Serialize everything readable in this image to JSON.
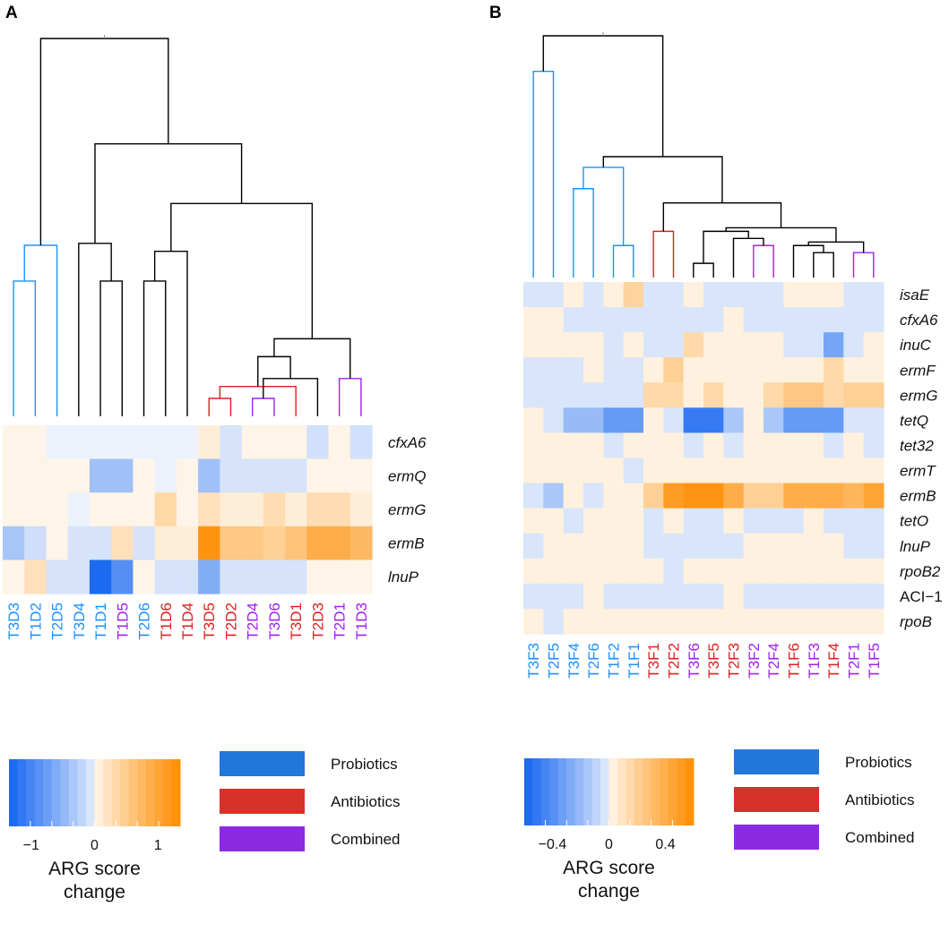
{
  "colors": {
    "Probiotics": "#1E90FF",
    "Antibiotics": "#DC2020",
    "Combined": "#A020F0",
    "neutral": "#000000",
    "negative_end": "#1565F0",
    "positive_end": "#FF8C00",
    "mid": "#FFFFFF"
  },
  "legend": {
    "items": [
      {
        "label": "Probiotics",
        "color": "#2277D9"
      },
      {
        "label": "Antibiotics",
        "color": "#D6322B"
      },
      {
        "label": "Combined",
        "color": "#8A2BE2"
      }
    ]
  },
  "chart_data": [
    {
      "type": "heatmap",
      "panel": "A",
      "title": "",
      "columns": [
        "T3D3",
        "T1D2",
        "T2D5",
        "T3D4",
        "T1D1",
        "T1D5",
        "T2D6",
        "T1D6",
        "T1D4",
        "T3D5",
        "T2D2",
        "T2D4",
        "T3D6",
        "T3D1",
        "T2D3",
        "T2D1",
        "T1D3"
      ],
      "column_groups": [
        "Probiotics",
        "Probiotics",
        "Probiotics",
        "Probiotics",
        "Probiotics",
        "Combined",
        "Probiotics",
        "Antibiotics",
        "Antibiotics",
        "Antibiotics",
        "Antibiotics",
        "Combined",
        "Combined",
        "Antibiotics",
        "Antibiotics",
        "Combined",
        "Combined"
      ],
      "rows": [
        "cfxA6",
        "ermQ",
        "ermG",
        "ermB",
        "lnuP"
      ],
      "italic_rows": [
        true,
        true,
        true,
        true,
        true
      ],
      "values": [
        [
          0.05,
          0.05,
          -0.05,
          -0.05,
          -0.05,
          -0.05,
          -0.05,
          -0.05,
          -0.05,
          0.1,
          -0.08,
          0.05,
          0.05,
          0.05,
          -0.1,
          0.05,
          -0.1
        ],
        [
          0.05,
          0.05,
          0.05,
          0.05,
          -0.4,
          -0.4,
          0.05,
          -0.05,
          0.05,
          -0.4,
          -0.08,
          -0.08,
          -0.08,
          -0.08,
          0.05,
          0.05,
          0.05
        ],
        [
          0.05,
          0.05,
          0.05,
          -0.05,
          0.05,
          0.05,
          0.05,
          0.35,
          0.05,
          0.25,
          0.1,
          0.1,
          0.3,
          0.1,
          0.3,
          0.3,
          0.1
        ],
        [
          -0.35,
          -0.12,
          0.05,
          -0.08,
          -0.08,
          0.25,
          -0.08,
          0.1,
          0.1,
          1.25,
          0.55,
          0.55,
          0.45,
          0.6,
          0.9,
          0.9,
          0.75
        ],
        [
          0.05,
          0.25,
          -0.08,
          -0.08,
          -1.3,
          -0.9,
          0.05,
          -0.08,
          -0.08,
          -0.6,
          -0.08,
          -0.08,
          -0.08,
          -0.08,
          0.05,
          0.05,
          0.05
        ]
      ],
      "colorbar": {
        "range": [
          -1.35,
          1.35
        ],
        "ticks": [
          -1,
          0,
          1
        ],
        "tick_labels": [
          "−1",
          "0",
          "1"
        ],
        "label_line1": "ARG score",
        "label_line2": "change"
      },
      "dendrogram": {
        "merges": [
          [
            0,
            1,
            0.68
          ],
          [
            4,
            5,
            0.68
          ],
          [
            6,
            7,
            0.68
          ],
          [
            9,
            10,
            0.09
          ],
          [
            11,
            12,
            0.09
          ],
          [
            13,
            -4,
            0.15
          ],
          [
            -5,
            14,
            0.19
          ],
          [
            15,
            16,
            0.19
          ],
          [
            -7,
            -6,
            0.3
          ],
          [
            -8,
            -9,
            0.39
          ],
          [
            -1,
            2,
            0.86
          ],
          [
            3,
            -2,
            0.87
          ],
          [
            -3,
            8,
            0.83
          ],
          [
            -13,
            -10,
            1.07
          ],
          [
            -12,
            -14,
            1.37
          ],
          [
            -11,
            -15,
            1.9
          ]
        ],
        "height_max": 1.9
      }
    },
    {
      "type": "heatmap",
      "panel": "B",
      "title": "",
      "columns": [
        "T3F3",
        "T2F5",
        "T3F4",
        "T2F6",
        "T1F2",
        "T1F1",
        "T3F1",
        "T2F2",
        "T3F6",
        "T3F5",
        "T2F3",
        "T3F2",
        "T2F4",
        "T1F6",
        "T1F3",
        "T1F4",
        "T2F1",
        "T1F5"
      ],
      "column_groups": [
        "Probiotics",
        "Probiotics",
        "Probiotics",
        "Probiotics",
        "Probiotics",
        "Probiotics",
        "Antibiotics",
        "Antibiotics",
        "Combined",
        "Antibiotics",
        "Antibiotics",
        "Combined",
        "Combined",
        "Antibiotics",
        "Combined",
        "Antibiotics",
        "Combined",
        "Combined"
      ],
      "rows": [
        "isaE",
        "cfxA6",
        "inuC",
        "ermF",
        "ermG",
        "tetQ",
        "tet32",
        "ermT",
        "ermB",
        "tetO",
        "lnuP",
        "rpoB2",
        "ACI−1",
        "rpoB"
      ],
      "italic_rows": [
        true,
        true,
        true,
        true,
        true,
        true,
        true,
        true,
        true,
        true,
        true,
        true,
        false,
        true
      ],
      "values": [
        [
          -0.03,
          -0.03,
          0.03,
          -0.03,
          0.03,
          0.18,
          -0.03,
          -0.03,
          0.03,
          -0.03,
          -0.03,
          -0.03,
          -0.03,
          0.03,
          0.03,
          0.03,
          -0.03,
          -0.03
        ],
        [
          0.03,
          0.03,
          -0.03,
          -0.03,
          -0.03,
          -0.03,
          -0.03,
          -0.03,
          -0.03,
          -0.03,
          0.03,
          -0.03,
          -0.03,
          -0.03,
          -0.03,
          -0.03,
          -0.03,
          -0.03
        ],
        [
          0.03,
          0.03,
          0.03,
          0.03,
          -0.03,
          0.03,
          -0.03,
          -0.03,
          0.15,
          0.03,
          0.03,
          0.03,
          0.03,
          -0.03,
          -0.03,
          -0.3,
          -0.03,
          0.03
        ],
        [
          -0.03,
          -0.03,
          -0.03,
          0.03,
          -0.03,
          -0.03,
          0.03,
          0.2,
          0.03,
          0.03,
          0.03,
          0.03,
          0.03,
          0.03,
          0.03,
          0.15,
          0.03,
          0.03
        ],
        [
          -0.03,
          -0.03,
          -0.03,
          -0.03,
          -0.03,
          -0.03,
          0.15,
          0.15,
          0.03,
          0.15,
          0.03,
          0.03,
          0.15,
          0.25,
          0.25,
          0.15,
          0.2,
          0.2
        ],
        [
          0.03,
          -0.03,
          -0.2,
          -0.2,
          -0.35,
          -0.35,
          0.03,
          -0.03,
          -0.5,
          -0.5,
          -0.15,
          0.03,
          -0.15,
          -0.35,
          -0.35,
          -0.35,
          -0.03,
          -0.03
        ],
        [
          0.03,
          0.03,
          0.03,
          0.03,
          -0.03,
          0.03,
          0.03,
          0.03,
          -0.03,
          0.03,
          -0.03,
          0.03,
          0.03,
          0.03,
          0.03,
          -0.03,
          0.03,
          -0.03
        ],
        [
          0.03,
          0.03,
          0.03,
          0.03,
          0.03,
          -0.03,
          0.03,
          0.03,
          0.03,
          0.03,
          0.03,
          0.03,
          0.03,
          0.03,
          0.03,
          0.03,
          0.03,
          0.03
        ],
        [
          -0.03,
          -0.15,
          0.03,
          -0.03,
          0.03,
          0.03,
          0.2,
          0.5,
          0.55,
          0.55,
          0.4,
          0.2,
          0.2,
          0.4,
          0.4,
          0.4,
          0.35,
          0.45
        ],
        [
          0.03,
          0.03,
          -0.03,
          0.03,
          0.03,
          0.03,
          -0.03,
          0.03,
          -0.03,
          -0.03,
          0.03,
          -0.03,
          -0.03,
          -0.03,
          0.03,
          -0.03,
          -0.03,
          -0.03
        ],
        [
          -0.03,
          0.03,
          0.03,
          0.03,
          0.03,
          0.03,
          -0.03,
          -0.03,
          -0.03,
          -0.03,
          -0.03,
          0.03,
          0.03,
          0.03,
          0.03,
          0.03,
          -0.03,
          -0.03
        ],
        [
          0.03,
          0.03,
          0.03,
          0.03,
          0.03,
          0.03,
          0.03,
          -0.03,
          0.03,
          0.03,
          0.03,
          0.03,
          0.03,
          0.03,
          0.03,
          0.03,
          0.03,
          0.03
        ],
        [
          -0.03,
          -0.03,
          -0.03,
          0.03,
          -0.03,
          -0.03,
          -0.03,
          -0.03,
          -0.03,
          -0.03,
          0.03,
          -0.03,
          -0.03,
          -0.03,
          -0.03,
          -0.03,
          -0.03,
          -0.03
        ],
        [
          0.03,
          -0.03,
          0.03,
          0.03,
          0.03,
          0.03,
          0.03,
          0.03,
          0.03,
          0.03,
          0.03,
          0.03,
          0.03,
          0.03,
          0.03,
          0.03,
          0.03,
          0.03
        ]
      ],
      "colorbar": {
        "range": [
          -0.6,
          0.6
        ],
        "ticks": [
          -0.4,
          0,
          0.4
        ],
        "tick_labels": [
          "−0.4",
          "0",
          "0.4"
        ],
        "label_line1": "ARG score",
        "label_line2": "change"
      },
      "dendrogram": {
        "merges": [
          [
            4,
            5,
            0.09
          ],
          [
            8,
            9,
            0.04
          ],
          [
            16,
            17,
            0.07
          ],
          [
            14,
            15,
            0.07
          ],
          [
            13,
            -4,
            0.09
          ],
          [
            11,
            12,
            0.09
          ],
          [
            6,
            7,
            0.13
          ],
          [
            2,
            3,
            0.25
          ],
          [
            10,
            -6,
            0.11
          ],
          [
            -2,
            -9,
            0.13
          ],
          [
            -5,
            -3,
            0.1
          ],
          [
            -10,
            -11,
            0.14
          ],
          [
            -8,
            -1,
            0.31
          ],
          [
            -7,
            -12,
            0.21
          ],
          [
            -13,
            -14,
            0.34
          ],
          [
            0,
            1,
            0.58
          ],
          [
            -16,
            -15,
            0.68
          ]
        ],
        "height_max": 0.68
      }
    }
  ],
  "panels": {
    "A": "A",
    "B": "B"
  }
}
